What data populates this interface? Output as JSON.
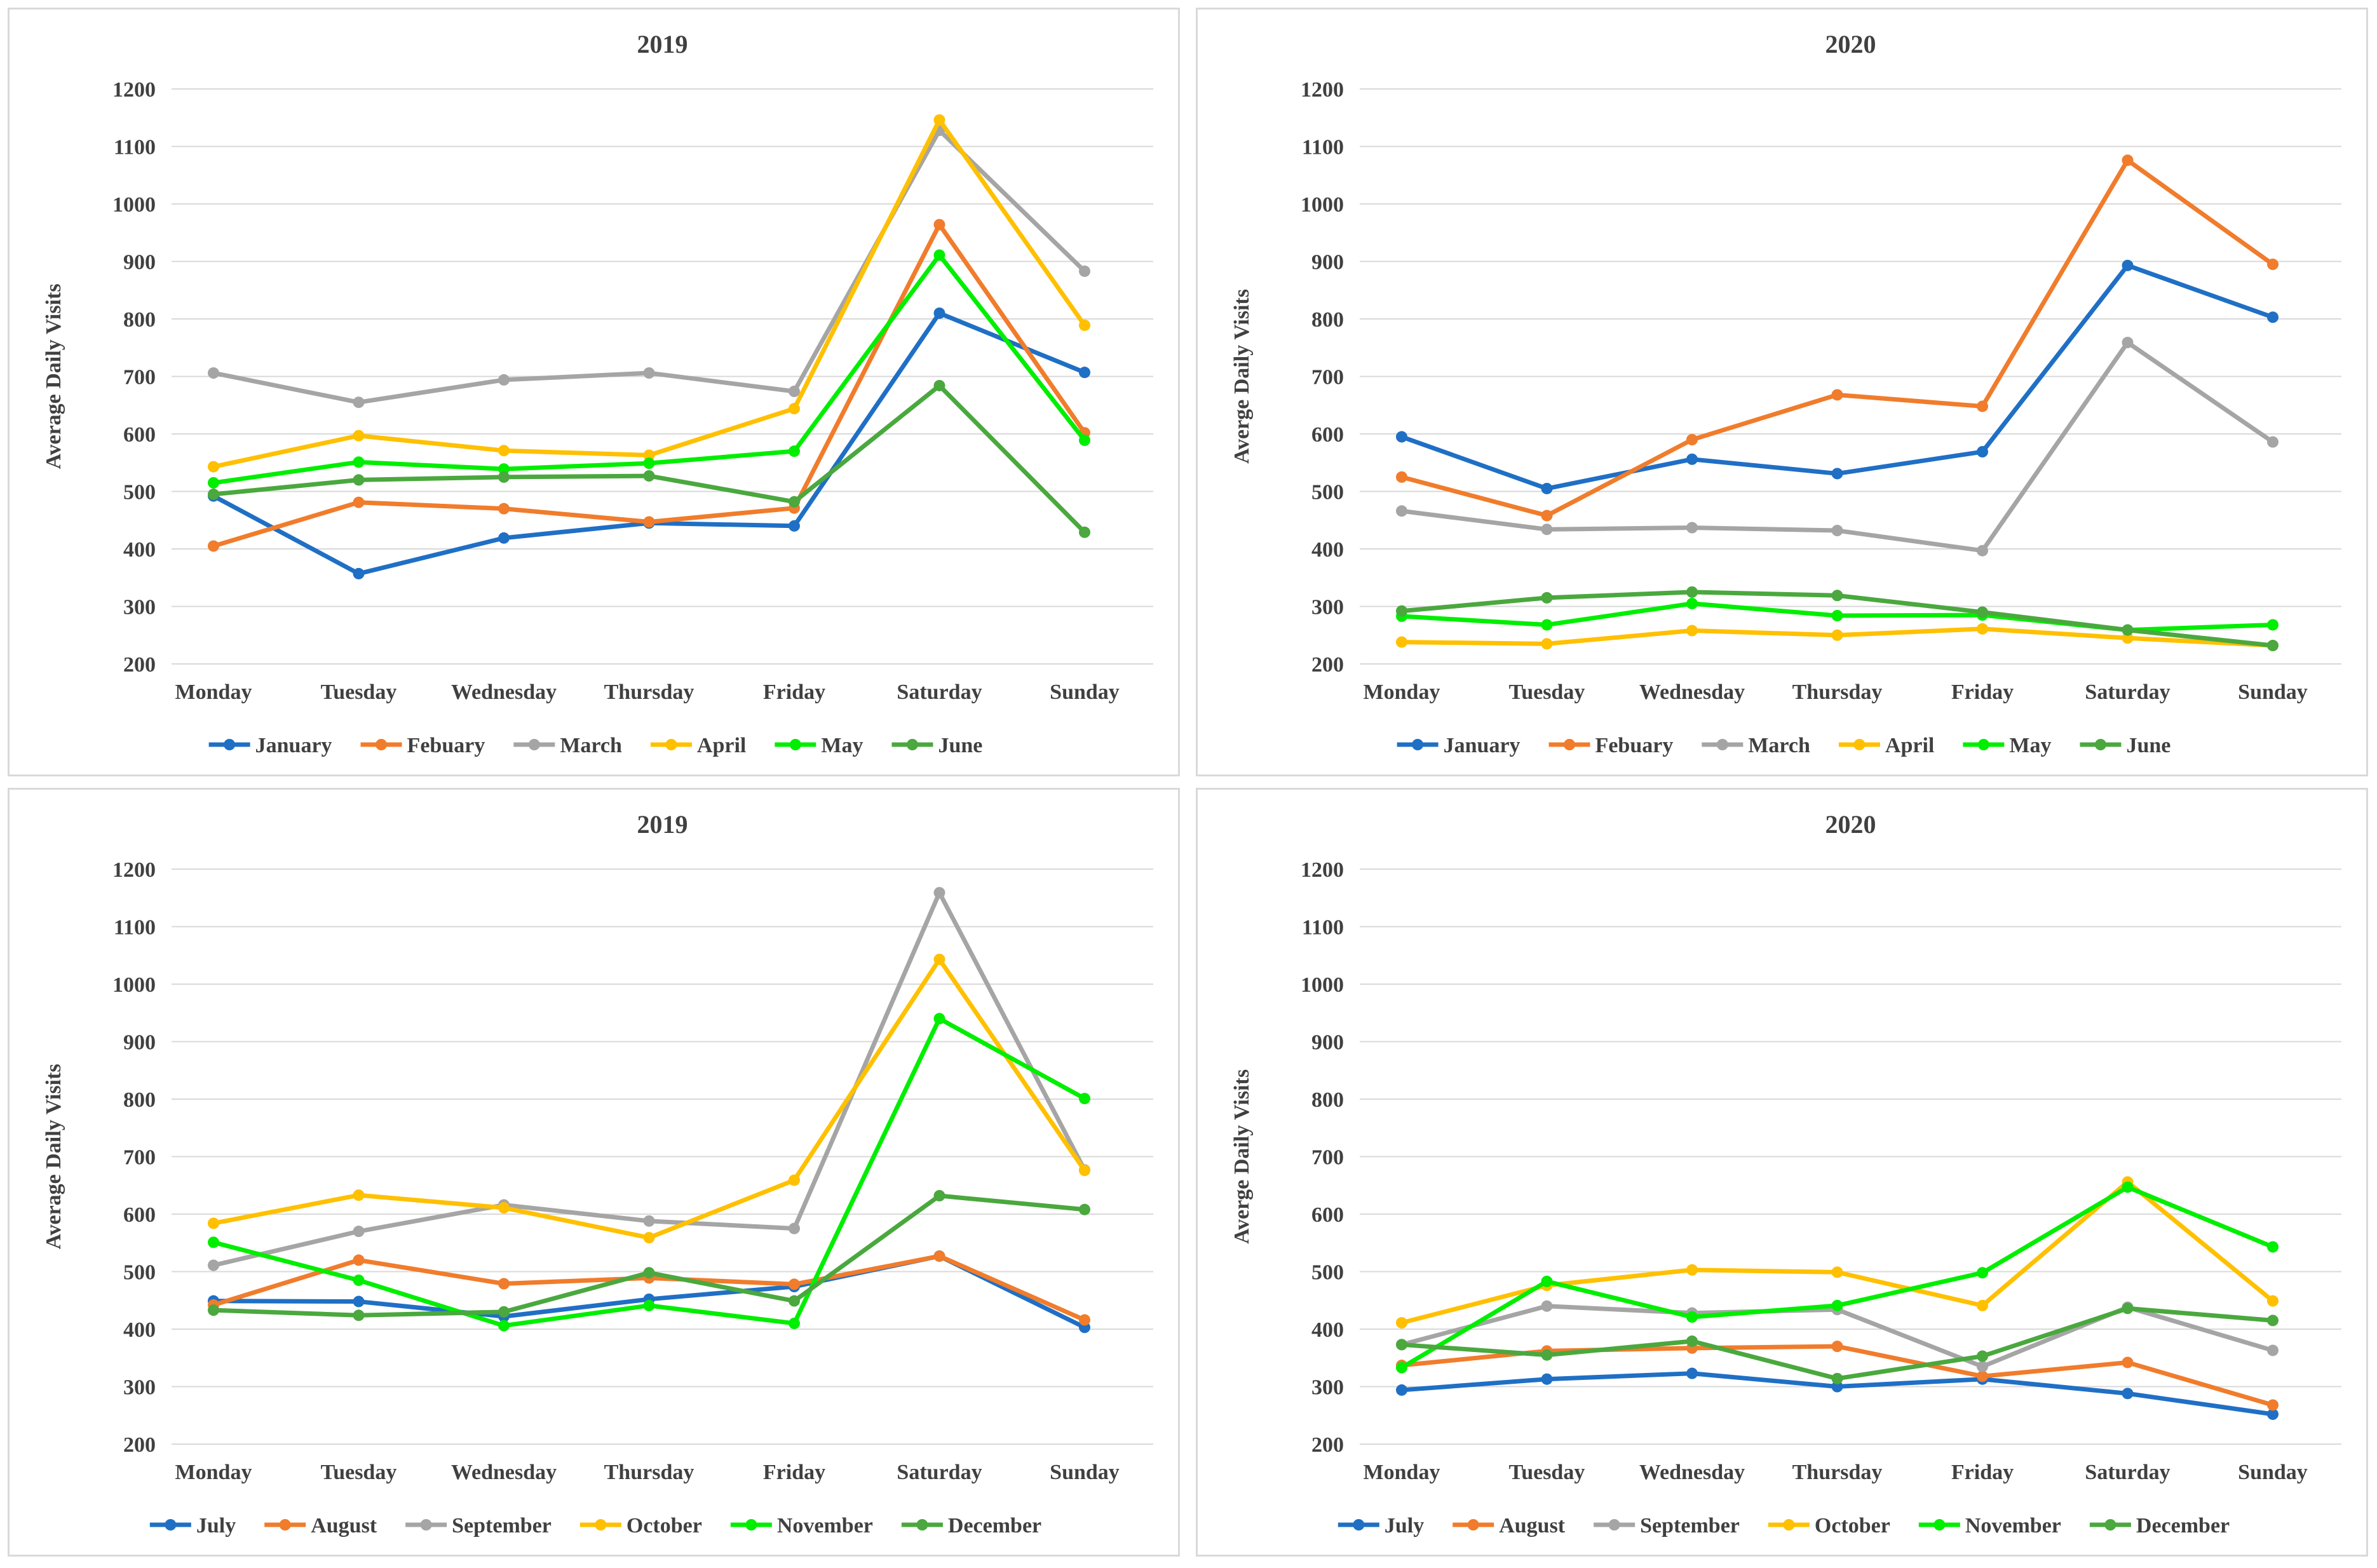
{
  "colors": {
    "blue": "#1F6FC5",
    "orange": "#F07C2C",
    "gray": "#A5A5A5",
    "yellow": "#FFC000",
    "bright_green": "#00EE00",
    "green": "#4AA83E",
    "grid": "#d9d9d9",
    "text": "#404040"
  },
  "chart_data": [
    {
      "type": "line",
      "title": "2019",
      "xlabel": "",
      "ylabel": "Average Daily Visits",
      "ylim": [
        200,
        1200
      ],
      "yticks": [
        200,
        300,
        400,
        500,
        600,
        700,
        800,
        900,
        1000,
        1100,
        1200
      ],
      "grid": true,
      "legend_position": "bottom",
      "categories": [
        "Monday",
        "Tuesday",
        "Wednesday",
        "Thursday",
        "Friday",
        "Saturday",
        "Sunday"
      ],
      "series": [
        {
          "name": "January",
          "color": "#1F6FC5",
          "values": [
            492,
            357,
            419,
            445,
            440,
            810,
            707
          ]
        },
        {
          "name": "Febuary",
          "color": "#F07C2C",
          "values": [
            405,
            481,
            470,
            447,
            471,
            964,
            602
          ]
        },
        {
          "name": "March",
          "color": "#A5A5A5",
          "values": [
            706,
            655,
            694,
            706,
            674,
            1128,
            883
          ]
        },
        {
          "name": "April",
          "color": "#FFC000",
          "values": [
            543,
            597,
            571,
            563,
            644,
            1146,
            789
          ]
        },
        {
          "name": "May",
          "color": "#00EE00",
          "values": [
            515,
            551,
            539,
            549,
            570,
            911,
            589
          ]
        },
        {
          "name": "June",
          "color": "#4AA83E",
          "values": [
            495,
            520,
            525,
            527,
            482,
            684,
            429
          ]
        }
      ]
    },
    {
      "type": "line",
      "title": "2020",
      "xlabel": "",
      "ylabel": "Averge Daily Visits",
      "ylim": [
        200,
        1200
      ],
      "yticks": [
        200,
        300,
        400,
        500,
        600,
        700,
        800,
        900,
        1000,
        1100,
        1200
      ],
      "grid": true,
      "legend_position": "bottom",
      "categories": [
        "Monday",
        "Tuesday",
        "Wednesday",
        "Thursday",
        "Friday",
        "Saturday",
        "Sunday"
      ],
      "series": [
        {
          "name": "January",
          "color": "#1F6FC5",
          "values": [
            595,
            505,
            556,
            531,
            569,
            893,
            803
          ]
        },
        {
          "name": "Febuary",
          "color": "#F07C2C",
          "values": [
            525,
            458,
            590,
            668,
            648,
            1076,
            895
          ]
        },
        {
          "name": "March",
          "color": "#A5A5A5",
          "values": [
            466,
            434,
            437,
            432,
            397,
            759,
            586
          ]
        },
        {
          "name": "April",
          "color": "#FFC000",
          "values": [
            238,
            235,
            258,
            250,
            261,
            245,
            232
          ]
        },
        {
          "name": "May",
          "color": "#00EE00",
          "values": [
            283,
            268,
            305,
            284,
            285,
            259,
            268
          ]
        },
        {
          "name": "June",
          "color": "#4AA83E",
          "values": [
            292,
            315,
            325,
            319,
            290,
            259,
            232
          ]
        }
      ]
    },
    {
      "type": "line",
      "title": "2019",
      "xlabel": "",
      "ylabel": "Average Daily Visits",
      "ylim": [
        200,
        1200
      ],
      "yticks": [
        200,
        300,
        400,
        500,
        600,
        700,
        800,
        900,
        1000,
        1100,
        1200
      ],
      "grid": true,
      "legend_position": "bottom",
      "categories": [
        "Monday",
        "Tuesday",
        "Wednesday",
        "Thursday",
        "Friday",
        "Saturday",
        "Sunday"
      ],
      "series": [
        {
          "name": "July",
          "color": "#1F6FC5",
          "values": [
            449,
            448,
            422,
            452,
            474,
            527,
            403
          ]
        },
        {
          "name": "August",
          "color": "#F07C2C",
          "values": [
            442,
            520,
            479,
            489,
            478,
            527,
            416
          ]
        },
        {
          "name": "September",
          "color": "#A5A5A5",
          "values": [
            511,
            570,
            616,
            588,
            575,
            1159,
            677
          ]
        },
        {
          "name": "October",
          "color": "#FFC000",
          "values": [
            584,
            633,
            611,
            559,
            659,
            1043,
            676
          ]
        },
        {
          "name": "November",
          "color": "#00EE00",
          "values": [
            551,
            485,
            406,
            441,
            410,
            940,
            801
          ]
        },
        {
          "name": "December",
          "color": "#4AA83E",
          "values": [
            433,
            424,
            430,
            498,
            449,
            632,
            608
          ]
        }
      ]
    },
    {
      "type": "line",
      "title": "2020",
      "xlabel": "",
      "ylabel": "Averge Daily Visits",
      "ylim": [
        200,
        1200
      ],
      "yticks": [
        200,
        300,
        400,
        500,
        600,
        700,
        800,
        900,
        1000,
        1100,
        1200
      ],
      "grid": true,
      "legend_position": "bottom",
      "categories": [
        "Monday",
        "Tuesday",
        "Wednesday",
        "Thursday",
        "Friday",
        "Saturday",
        "Sunday"
      ],
      "series": [
        {
          "name": "July",
          "color": "#1F6FC5",
          "values": [
            294,
            313,
            323,
            300,
            313,
            288,
            252
          ]
        },
        {
          "name": "August",
          "color": "#F07C2C",
          "values": [
            337,
            362,
            367,
            370,
            318,
            342,
            268
          ]
        },
        {
          "name": "September",
          "color": "#A5A5A5",
          "values": [
            373,
            440,
            428,
            434,
            335,
            438,
            363
          ]
        },
        {
          "name": "October",
          "color": "#FFC000",
          "values": [
            411,
            476,
            503,
            499,
            441,
            656,
            449
          ]
        },
        {
          "name": "November",
          "color": "#00EE00",
          "values": [
            333,
            483,
            421,
            441,
            498,
            647,
            543
          ]
        },
        {
          "name": "December",
          "color": "#4AA83E",
          "values": [
            373,
            355,
            379,
            314,
            353,
            436,
            415
          ]
        }
      ]
    }
  ]
}
